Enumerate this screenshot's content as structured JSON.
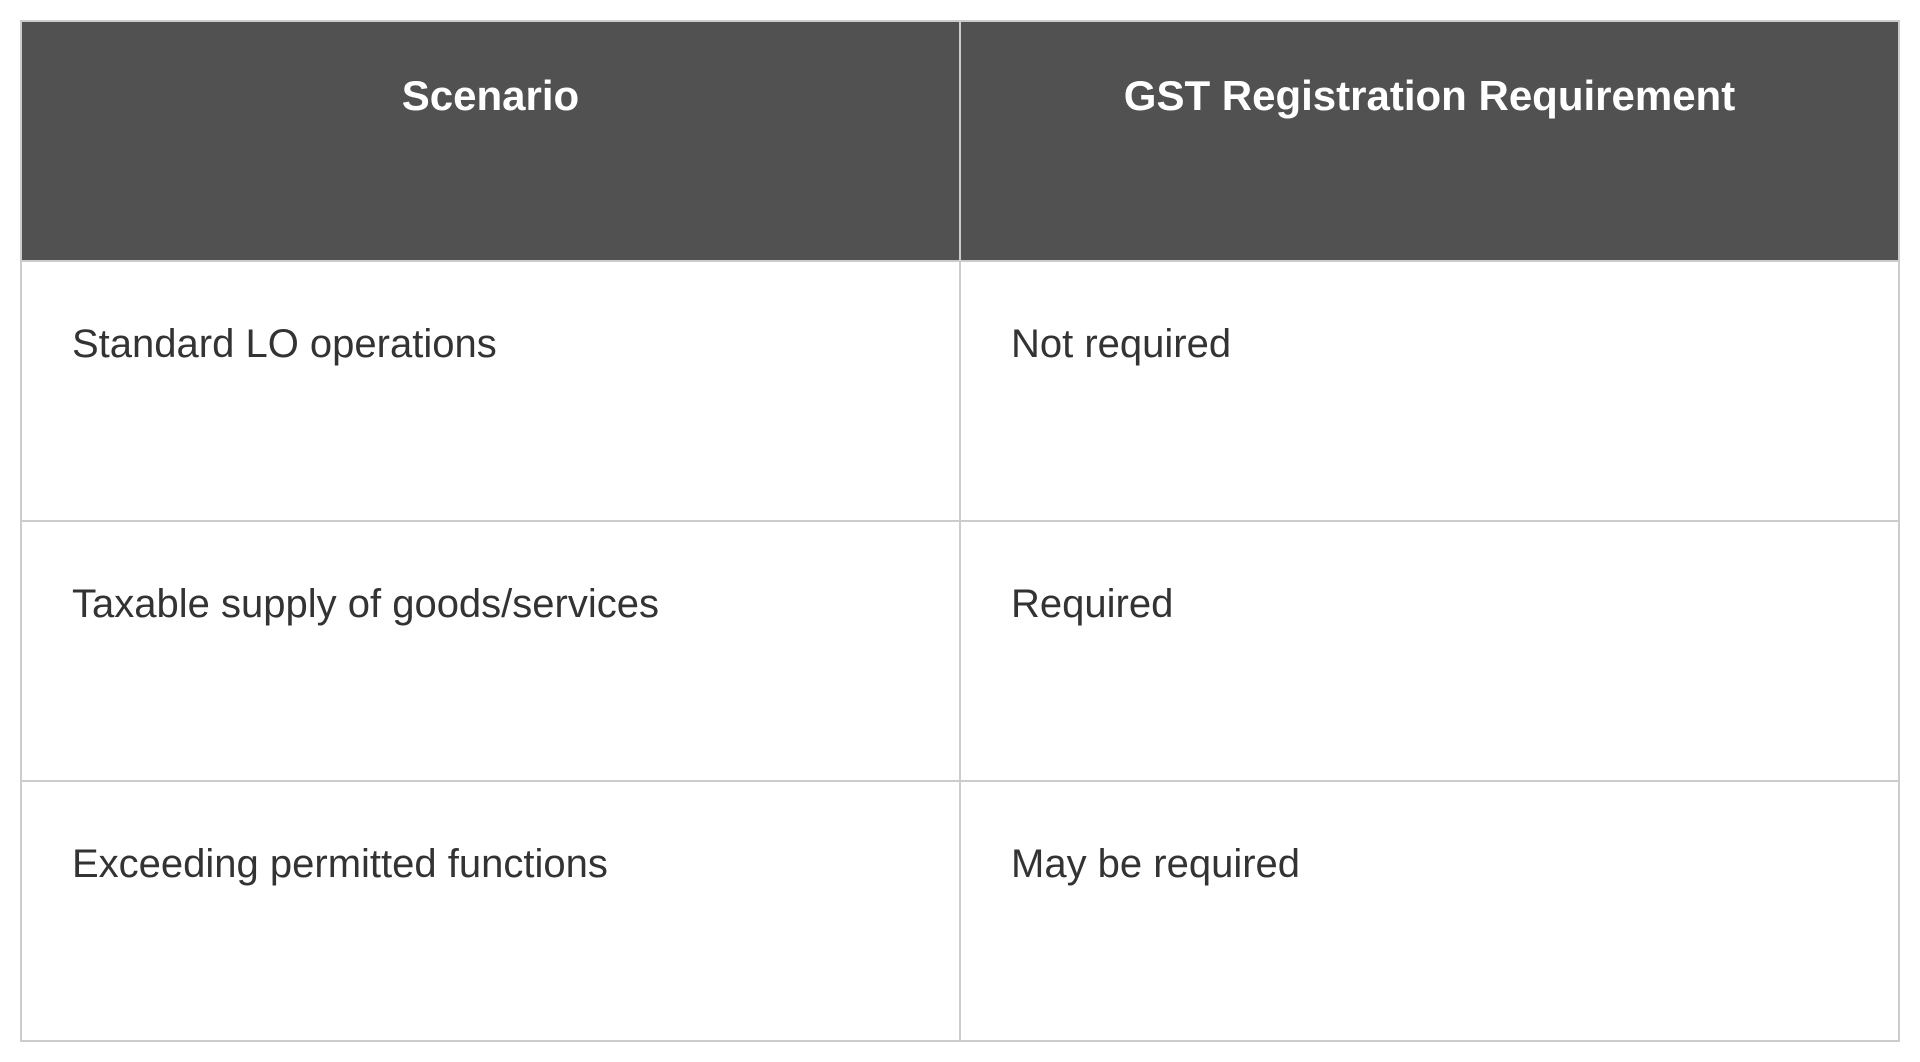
{
  "table": {
    "type": "table",
    "header_background_color": "#515151",
    "header_text_color": "#ffffff",
    "header_font_size": 42,
    "header_font_weight": "bold",
    "cell_text_color": "#333333",
    "cell_font_size": 40,
    "cell_background_color": "#ffffff",
    "border_color": "#cccccc",
    "border_width": 2,
    "columns": [
      {
        "label": "Scenario",
        "width_pct": 50,
        "align": "left"
      },
      {
        "label": "GST Registration Requirement",
        "width_pct": 50,
        "align": "left"
      }
    ],
    "rows": [
      {
        "scenario": "Standard LO operations",
        "requirement": "Not required"
      },
      {
        "scenario": "Taxable supply of goods/services",
        "requirement": "Required"
      },
      {
        "scenario": "Exceeding permitted functions",
        "requirement": "May be required"
      }
    ]
  }
}
